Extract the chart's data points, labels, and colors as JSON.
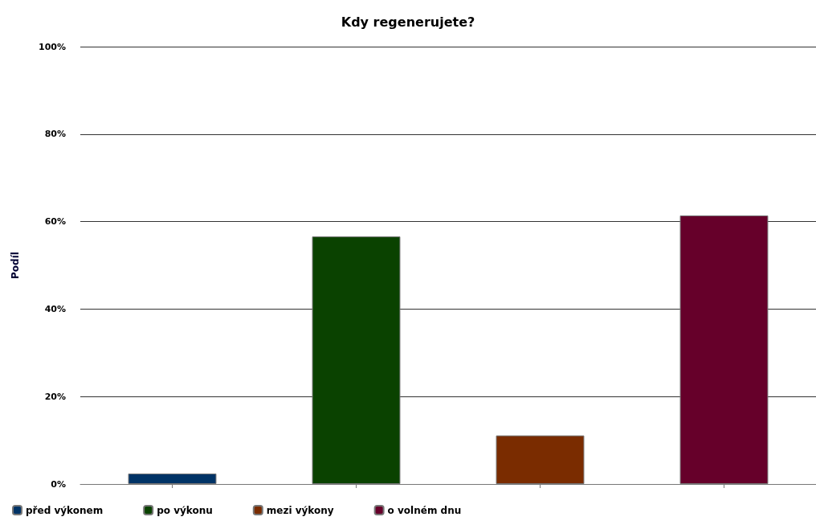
{
  "chart_data": {
    "type": "bar",
    "title": "Kdy regenerujete?",
    "ylabel": "Podíl",
    "categories": [
      null,
      null,
      null,
      null
    ],
    "series": [
      {
        "name": "před výkonem",
        "color": "#003366",
        "values": [
          2.4,
          null,
          null,
          null
        ]
      },
      {
        "name": "po výkonu",
        "color": "#0a4200",
        "values": [
          null,
          56.6,
          null,
          null
        ]
      },
      {
        "name": "mezi výkony",
        "color": "#7a2c00",
        "values": [
          null,
          null,
          11.1,
          null
        ]
      },
      {
        "name": "o volném dnu",
        "color": "#66002a",
        "values": [
          null,
          null,
          null,
          61.4
        ]
      }
    ],
    "ylim": [
      0,
      100
    ],
    "yticks": [
      {
        "value": 0,
        "label": "0%"
      },
      {
        "value": 20,
        "label": "20%"
      },
      {
        "value": 40,
        "label": "40%"
      },
      {
        "value": 60,
        "label": "60%"
      },
      {
        "value": 80,
        "label": "80%"
      },
      {
        "value": 100,
        "label": "100%"
      }
    ],
    "grid": "y",
    "legend": "bottom left"
  }
}
